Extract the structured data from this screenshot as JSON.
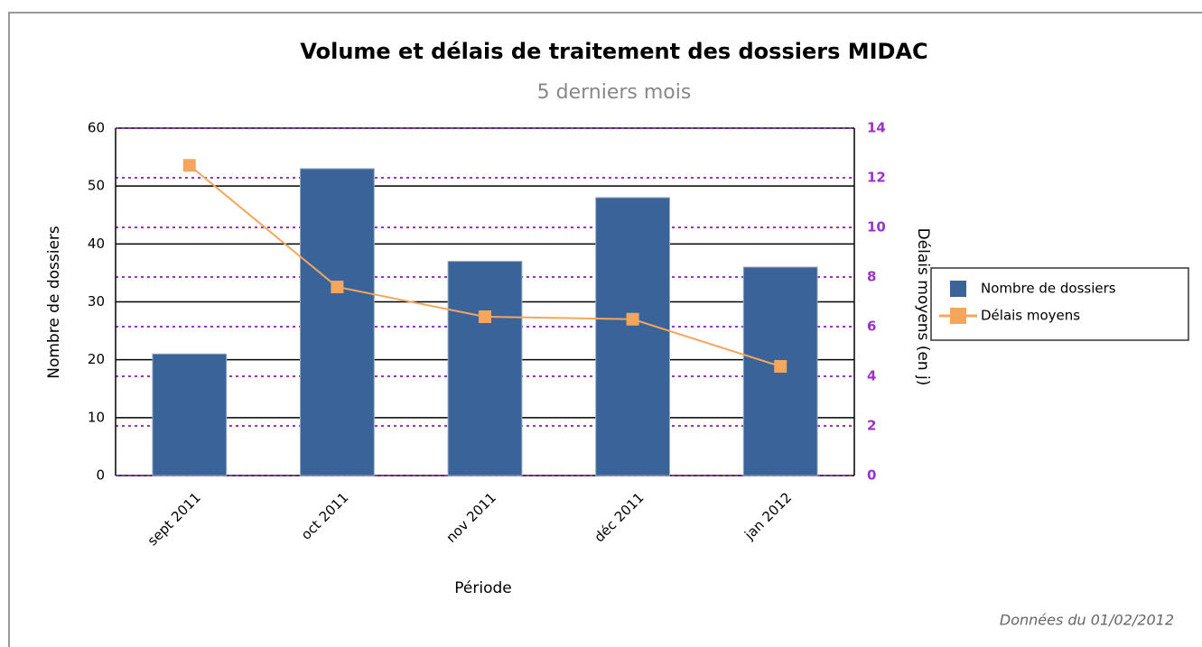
{
  "chart_data": {
    "type": "bar",
    "title": "Volume et délais de traitement des dossiers MIDAC",
    "subtitle": "5 derniers mois",
    "x_label": "Période",
    "y_label": "Nombre de dossiers",
    "y2_label": "Délais moyens (en j)",
    "annotation": "Données du 01/02/2012",
    "categories": [
      "sept 2011",
      "oct 2011",
      "nov 2011",
      "déc 2011",
      "jan 2012"
    ],
    "series": [
      {
        "name": "Nombre de dossiers",
        "type": "bar",
        "color": "#3a6499",
        "values": [
          21,
          53,
          37,
          48,
          36
        ]
      },
      {
        "name": "Délais moyens",
        "type": "line",
        "axis": "y2",
        "color": "#f4a65c",
        "values": [
          12.5,
          7.6,
          6.4,
          6.3,
          4.4
        ]
      }
    ],
    "ylim": [
      0,
      60
    ],
    "yticks": [
      0,
      10,
      20,
      30,
      40,
      50,
      60
    ],
    "y2lim": [
      0,
      14
    ],
    "y2ticks": [
      0,
      2,
      4,
      6,
      8,
      10,
      12,
      14
    ],
    "grid": true,
    "legend": "right"
  }
}
